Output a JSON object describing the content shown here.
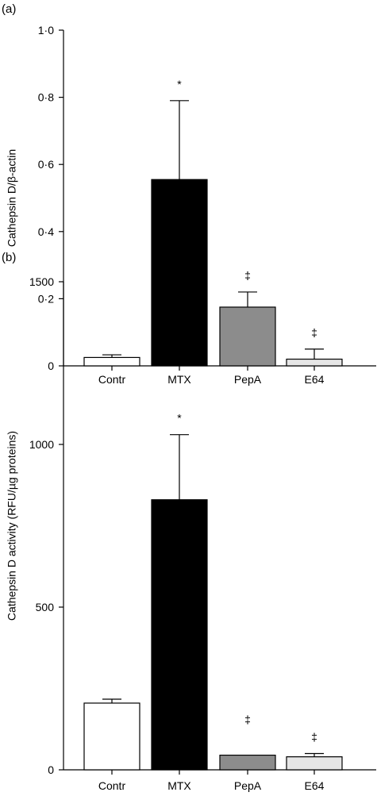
{
  "panels": [
    {
      "panel_label": "(a)",
      "chart_data": {
        "type": "bar",
        "categories": [
          "Contr",
          "MTX",
          "PepA",
          "E64"
        ],
        "values": [
          0.025,
          0.555,
          0.175,
          0.02
        ],
        "errors": [
          0.008,
          0.235,
          0.045,
          0.03
        ],
        "annotations": [
          "",
          "*",
          "‡",
          "‡"
        ],
        "colors": [
          "#ffffff",
          "#000000",
          "#8c8c8c",
          "#e6e6e6"
        ],
        "title": "",
        "xlabel": "",
        "ylabel": "Cathepsin D/β-actin",
        "ylim": [
          0,
          1.0
        ],
        "yticks": [
          0,
          0.2,
          0.4,
          0.6,
          0.8,
          1.0
        ],
        "ytick_labels": [
          "0",
          "0·2",
          "0·4",
          "0·6",
          "0·8",
          "1·0"
        ],
        "grid": false
      }
    },
    {
      "panel_label": "(b)",
      "chart_data": {
        "type": "bar",
        "categories": [
          "Contr",
          "MTX",
          "PepA",
          "E64"
        ],
        "values": [
          205,
          830,
          45,
          40
        ],
        "errors": [
          12,
          200,
          0,
          10
        ],
        "annotations": [
          "",
          "*",
          "‡",
          "‡"
        ],
        "colors": [
          "#ffffff",
          "#000000",
          "#8c8c8c",
          "#e6e6e6"
        ],
        "title": "",
        "xlabel": "",
        "ylabel": "Cathepsin D activity (RFU/µg proteins)",
        "ylim": [
          0,
          1500
        ],
        "yticks": [
          0,
          500,
          1000,
          1500
        ],
        "ytick_labels": [
          "0",
          "500",
          "1000",
          "1500"
        ],
        "grid": false
      }
    }
  ]
}
